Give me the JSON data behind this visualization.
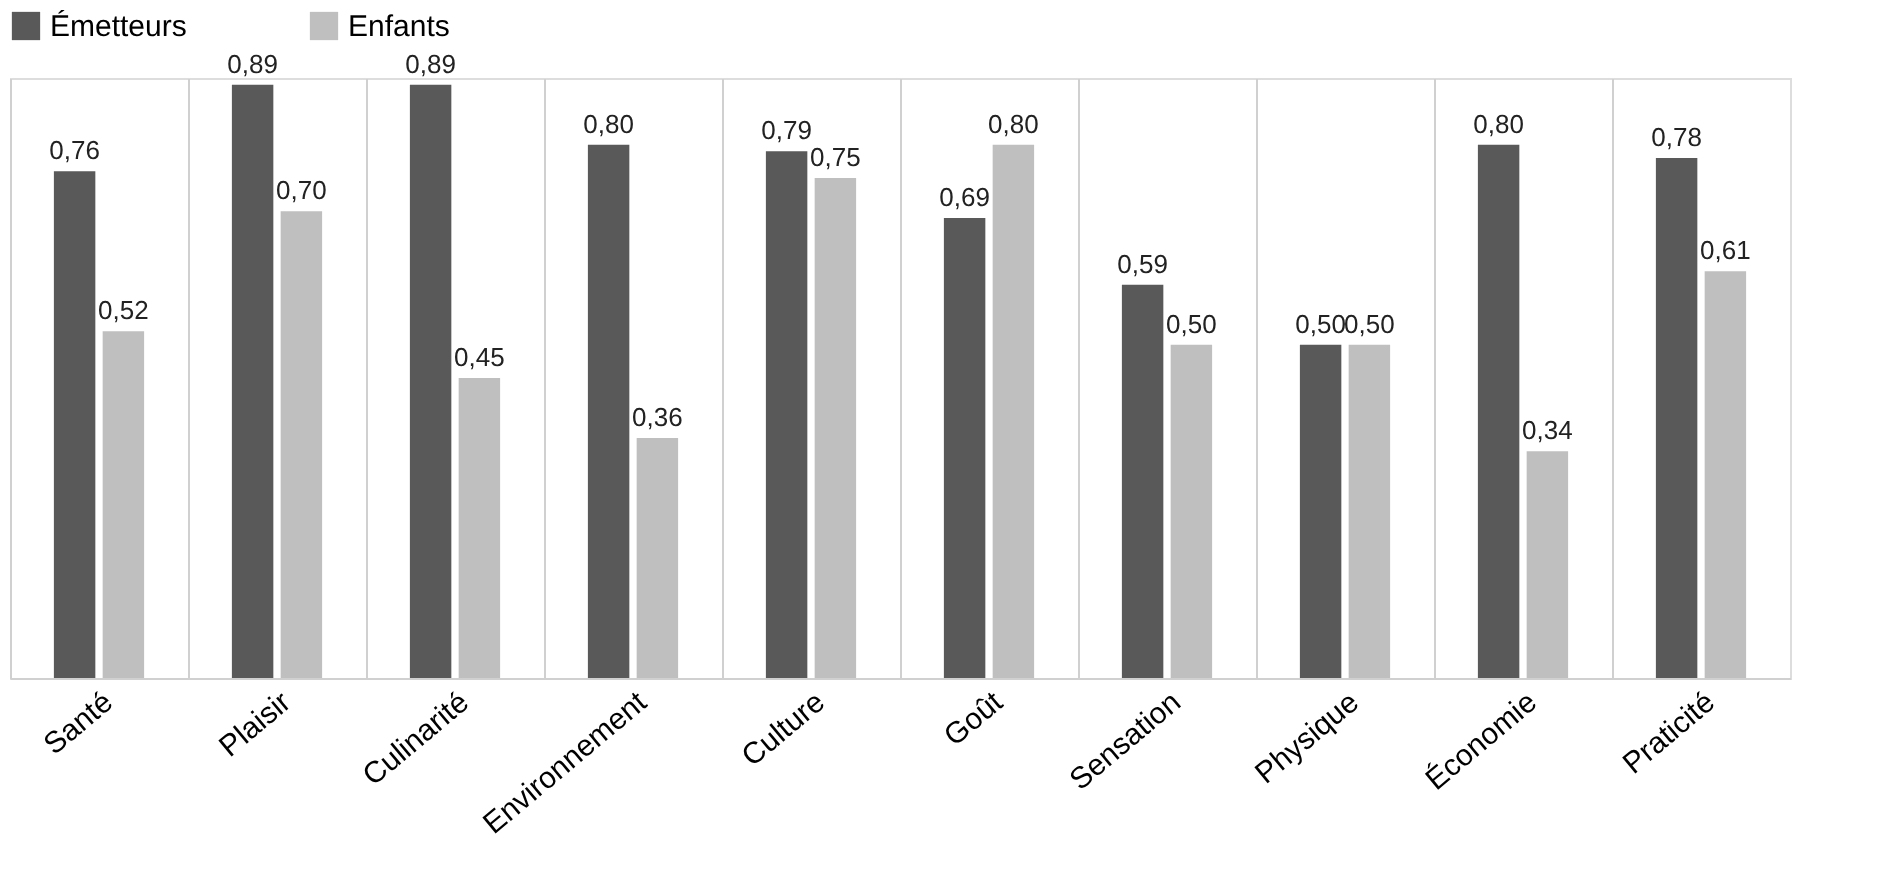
{
  "chart_data": {
    "type": "bar",
    "categories": [
      "Santé",
      "Plaisir",
      "Culinarité",
      "Environnement",
      "Culture",
      "Goût",
      "Sensation",
      "Physique",
      "Économie",
      "Praticité"
    ],
    "series": [
      {
        "name": "Émetteurs",
        "color": "#595959",
        "values": [
          0.76,
          0.89,
          0.89,
          0.8,
          0.79,
          0.69,
          0.59,
          0.5,
          0.8,
          0.78
        ],
        "value_labels": [
          "0,76",
          "0,89",
          "0,89",
          "0,80",
          "0,79",
          "0,69",
          "0,59",
          "0,50",
          "0,80",
          "0,78"
        ]
      },
      {
        "name": "Enfants",
        "color": "#bfbfbf",
        "values": [
          0.52,
          0.7,
          0.45,
          0.36,
          0.75,
          0.8,
          0.5,
          0.5,
          0.34,
          0.61
        ],
        "value_labels": [
          "0,52",
          "0,70",
          "0,45",
          "0,36",
          "0,75",
          "0,80",
          "0,50",
          "0,50",
          "0,34",
          "0,61"
        ]
      }
    ],
    "grid": "x",
    "legend": "top",
    "tick_labels": "x"
  }
}
